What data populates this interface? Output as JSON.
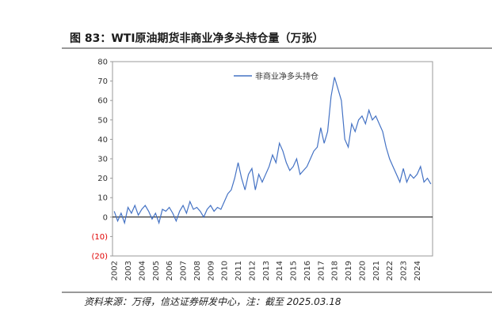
{
  "chart_data": {
    "type": "line",
    "title": "图 83：WTI原油期货非商业净多头持仓量（万张）",
    "source": "资料来源：万得，信达证券研发中心，注：截至 2025.03.18",
    "categories": [
      "2002",
      null,
      null,
      null,
      "2003",
      null,
      null,
      null,
      "2004",
      null,
      null,
      null,
      "2005",
      null,
      null,
      null,
      "2006",
      null,
      null,
      null,
      "2007",
      null,
      null,
      null,
      "2008",
      null,
      null,
      null,
      "2009",
      null,
      null,
      null,
      "2010",
      null,
      null,
      null,
      "2011",
      null,
      null,
      null,
      "2012",
      null,
      null,
      null,
      "2013",
      null,
      null,
      null,
      "2014",
      null,
      null,
      null,
      "2015",
      null,
      null,
      null,
      "2016",
      null,
      null,
      null,
      "2017",
      null,
      null,
      null,
      "2018",
      null,
      null,
      null,
      "2019",
      null,
      null,
      null,
      "2020",
      null,
      null,
      null,
      "2021",
      null,
      null,
      null,
      "2022",
      null,
      null,
      null,
      "2023",
      null,
      null,
      null,
      "2024",
      null,
      null,
      null,
      null
    ],
    "series": [
      {
        "name": "非商业净多头持仓",
        "color": "#4472c4",
        "values": [
          3,
          -2,
          2,
          -3,
          5,
          2,
          6,
          1,
          4,
          6,
          3,
          -1,
          2,
          -3,
          4,
          3,
          5,
          2,
          -2,
          3,
          6,
          2,
          8,
          4,
          5,
          3,
          0,
          4,
          6,
          3,
          5,
          4,
          8,
          12,
          14,
          20,
          28,
          20,
          14,
          22,
          25,
          14,
          22,
          18,
          22,
          26,
          32,
          28,
          38,
          34,
          28,
          24,
          26,
          30,
          22,
          24,
          26,
          30,
          34,
          36,
          46,
          38,
          44,
          62,
          72,
          66,
          60,
          40,
          36,
          48,
          44,
          50,
          52,
          48,
          55,
          50,
          52,
          48,
          44,
          36,
          30,
          26,
          22,
          18,
          25,
          18,
          22,
          20,
          22,
          26,
          18,
          20,
          17
        ]
      }
    ],
    "ylim": [
      -20,
      80
    ],
    "yticks": [
      {
        "value": -20,
        "label": "(20)"
      },
      {
        "value": -10,
        "label": "(10)"
      },
      0,
      10,
      20,
      30,
      40,
      50,
      60,
      70,
      80
    ],
    "negative_label_color": "#e00000",
    "grid": false
  }
}
